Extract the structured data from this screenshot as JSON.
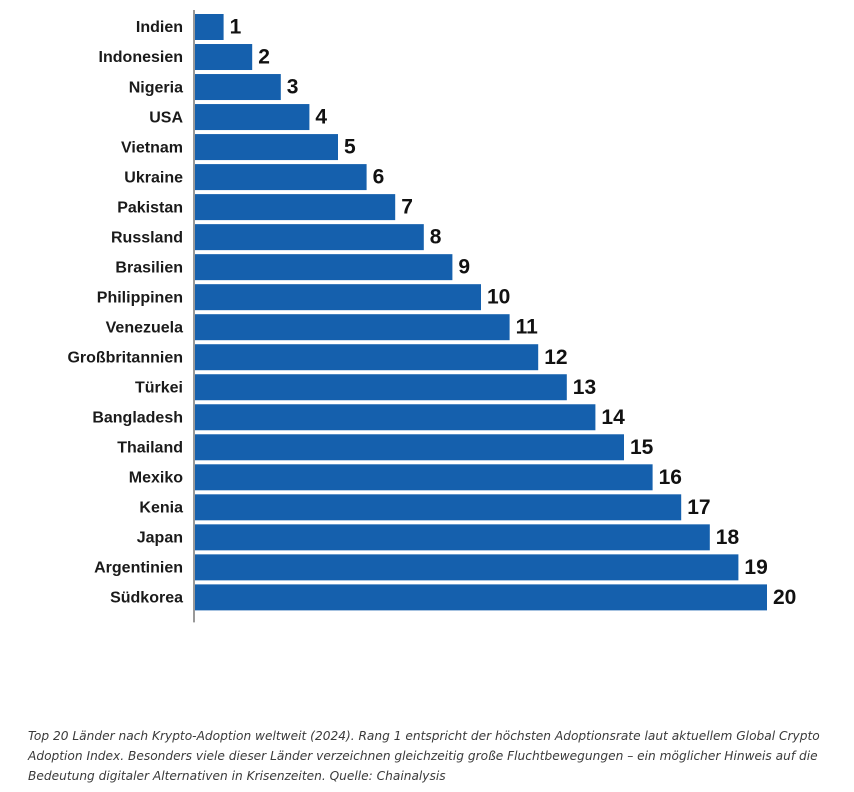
{
  "chart_data": {
    "type": "bar",
    "orientation": "horizontal",
    "categories": [
      "Indien",
      "Indonesien",
      "Nigeria",
      "USA",
      "Vietnam",
      "Ukraine",
      "Pakistan",
      "Russland",
      "Brasilien",
      "Philippinen",
      "Venezuela",
      "Großbritannien",
      "Türkei",
      "Bangladesh",
      "Thailand",
      "Mexiko",
      "Kenia",
      "Japan",
      "Argentinien",
      "Südkorea"
    ],
    "values": [
      1,
      2,
      3,
      4,
      5,
      6,
      7,
      8,
      9,
      10,
      11,
      12,
      13,
      14,
      15,
      16,
      17,
      18,
      19,
      20
    ],
    "xlim": [
      0,
      20
    ],
    "bar_color": "#1560ad",
    "grid": false,
    "legend": "none",
    "title": "",
    "xlabel": "",
    "ylabel": ""
  },
  "caption": "Top 20 Länder nach Krypto-Adoption weltweit (2024). Rang 1 entspricht der höchsten Adoptionsrate laut aktuellem Global Crypto Adoption Index. Besonders viele dieser Länder verzeichnen gleichzeitig große Fluchtbewegungen – ein möglicher Hinweis auf die Bedeutung digitaler Alternativen in Krisenzeiten. Quelle: Chainalysis"
}
